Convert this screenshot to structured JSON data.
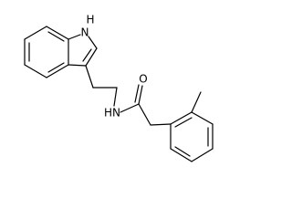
{
  "atoms": [
    {
      "label": "H"
    },
    {
      "label": "N"
    },
    {
      "label": "HN"
    },
    {
      "label": "O"
    }
  ]
}
